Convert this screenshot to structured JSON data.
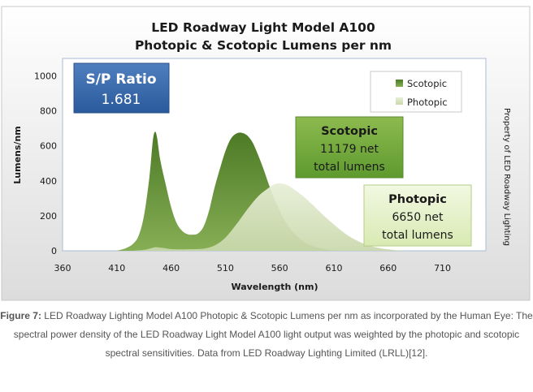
{
  "chart_data": {
    "type": "area",
    "title": [
      "LED Roadway Light Model A100",
      "Photopic & Scotopic Lumens per nm"
    ],
    "xlabel": "Wavelength (nm)",
    "ylabel": "Lumens/nm",
    "xlim": [
      360,
      750
    ],
    "ylim": [
      0,
      1100
    ],
    "x_ticks": [
      360,
      410,
      460,
      510,
      560,
      610,
      660,
      710
    ],
    "y_ticks": [
      0,
      200,
      400,
      600,
      800,
      1000
    ],
    "grid": false,
    "legend": {
      "position": "top-right",
      "entries": [
        "Scotopic",
        "Photopic"
      ]
    },
    "series": [
      {
        "name": "Scotopic",
        "color": "#5b8a2f",
        "points": [
          [
            410,
            0
          ],
          [
            415,
            8
          ],
          [
            420,
            20
          ],
          [
            425,
            40
          ],
          [
            430,
            85
          ],
          [
            435,
            200
          ],
          [
            440,
            420
          ],
          [
            443,
            620
          ],
          [
            445,
            680
          ],
          [
            447,
            650
          ],
          [
            450,
            520
          ],
          [
            455,
            380
          ],
          [
            460,
            250
          ],
          [
            465,
            160
          ],
          [
            470,
            115
          ],
          [
            475,
            95
          ],
          [
            480,
            92
          ],
          [
            485,
            100
          ],
          [
            490,
            140
          ],
          [
            495,
            230
          ],
          [
            500,
            360
          ],
          [
            505,
            470
          ],
          [
            510,
            570
          ],
          [
            515,
            640
          ],
          [
            520,
            670
          ],
          [
            525,
            675
          ],
          [
            530,
            660
          ],
          [
            535,
            620
          ],
          [
            540,
            550
          ],
          [
            545,
            470
          ],
          [
            550,
            380
          ],
          [
            555,
            300
          ],
          [
            560,
            230
          ],
          [
            565,
            170
          ],
          [
            570,
            125
          ],
          [
            575,
            90
          ],
          [
            580,
            62
          ],
          [
            585,
            42
          ],
          [
            590,
            28
          ],
          [
            595,
            18
          ],
          [
            600,
            11
          ],
          [
            605,
            6
          ],
          [
            610,
            3
          ],
          [
            615,
            1
          ],
          [
            620,
            0
          ]
        ]
      },
      {
        "name": "Photopic",
        "color": "#d8e4c0",
        "points": [
          [
            425,
            0
          ],
          [
            435,
            5
          ],
          [
            440,
            12
          ],
          [
            445,
            20
          ],
          [
            450,
            18
          ],
          [
            455,
            14
          ],
          [
            460,
            10
          ],
          [
            470,
            8
          ],
          [
            480,
            9
          ],
          [
            490,
            12
          ],
          [
            500,
            30
          ],
          [
            510,
            75
          ],
          [
            520,
            150
          ],
          [
            530,
            235
          ],
          [
            540,
            310
          ],
          [
            550,
            360
          ],
          [
            555,
            380
          ],
          [
            560,
            385
          ],
          [
            565,
            380
          ],
          [
            570,
            365
          ],
          [
            580,
            320
          ],
          [
            590,
            265
          ],
          [
            600,
            205
          ],
          [
            610,
            150
          ],
          [
            620,
            100
          ],
          [
            630,
            62
          ],
          [
            640,
            35
          ],
          [
            650,
            18
          ],
          [
            660,
            8
          ],
          [
            670,
            2
          ],
          [
            680,
            0
          ]
        ]
      }
    ],
    "annotations": {
      "sp_ratio": {
        "label": "S/P Ratio",
        "value": "1.681"
      },
      "scotopic_box": {
        "title": "Scotopic",
        "line1": "11179 net",
        "line2": "total lumens"
      },
      "photopic_box": {
        "title": "Photopic",
        "line1": "6650 net",
        "line2": "total lumens"
      },
      "watermark": "Property of LED Roadway Lighting"
    }
  },
  "caption": {
    "lead": "Figure 7:",
    "text": " LED Roadway Lighting Model A100 Photopic & Scotopic Lumens per nm as incorporated by the Human Eye: The spectral power density of the LED Roadway Light Model A100 light output was weighted by the photopic and scotopic spectral sensitivities. Data from LED Roadway Lighting Limited (LRLL)[12]."
  }
}
